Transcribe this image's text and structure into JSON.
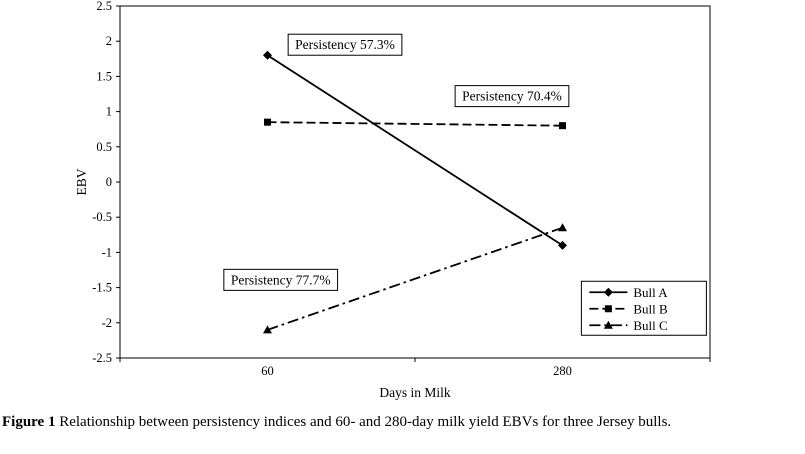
{
  "figure": {
    "caption_label": "Figure 1",
    "caption_text": "Relationship between persistency indices and 60- and 280-day milk yield EBVs for three Jersey bulls."
  },
  "chart_data": {
    "type": "line",
    "title": "",
    "xlabel": "Days in Milk",
    "ylabel": "EBV",
    "categories": [
      "60",
      "280"
    ],
    "ylim": [
      -2.5,
      2.5
    ],
    "yticks": [
      2.5,
      2,
      1.5,
      1,
      0.5,
      0,
      -0.5,
      -1,
      -1.5,
      -2,
      -2.5
    ],
    "grid": false,
    "legend_position": "bottom-right",
    "series": [
      {
        "name": "Bull A",
        "values": [
          1.8,
          -0.9
        ],
        "marker": "diamond",
        "line_style": "solid",
        "persistency": "57.3%"
      },
      {
        "name": "Bull B",
        "values": [
          0.85,
          0.8
        ],
        "marker": "square",
        "line_style": "dashed",
        "persistency": "70.4%"
      },
      {
        "name": "Bull C",
        "values": [
          -2.1,
          -0.65
        ],
        "marker": "triangle",
        "line_style": "dashdot",
        "persistency": "77.7%"
      }
    ],
    "annotations": [
      {
        "text": "Persistency 57.3%",
        "x_frac": 0.285,
        "y_value": 1.95
      },
      {
        "text": "Persistency 70.4%",
        "x_frac": 0.568,
        "y_value": 1.22
      },
      {
        "text": "Persistency 77.7%",
        "x_frac": 0.176,
        "y_value": -1.39
      }
    ],
    "colors": {
      "line": "#000000",
      "background": "#ffffff",
      "box_fill": "#ffffff"
    }
  }
}
